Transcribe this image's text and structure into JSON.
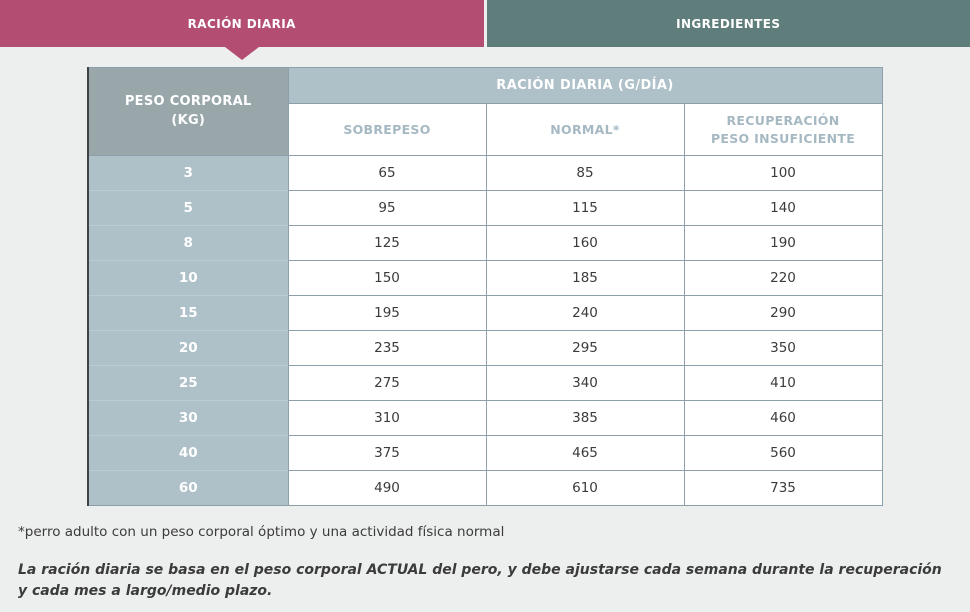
{
  "tabs": {
    "ration": {
      "label": "RACIÓN DIARIA",
      "active": true
    },
    "ingredients": {
      "label": "INGREDIENTES",
      "active": false
    }
  },
  "table": {
    "corner_header": "PESO CORPORAL\n(KG)",
    "group_header": "RACIÓN DIARIA (G/DÍA)",
    "columns": [
      "SOBREPESO",
      "NORMAL*",
      "RECUPERACIÓN\nPESO INSUFICIENTE"
    ],
    "rows": [
      {
        "weight": "3",
        "values": [
          "65",
          "85",
          "100"
        ]
      },
      {
        "weight": "5",
        "values": [
          "95",
          "115",
          "140"
        ]
      },
      {
        "weight": "8",
        "values": [
          "125",
          "160",
          "190"
        ]
      },
      {
        "weight": "10",
        "values": [
          "150",
          "185",
          "220"
        ]
      },
      {
        "weight": "15",
        "values": [
          "195",
          "240",
          "290"
        ]
      },
      {
        "weight": "20",
        "values": [
          "235",
          "295",
          "350"
        ]
      },
      {
        "weight": "25",
        "values": [
          "275",
          "340",
          "410"
        ]
      },
      {
        "weight": "30",
        "values": [
          "310",
          "385",
          "460"
        ]
      },
      {
        "weight": "40",
        "values": [
          "375",
          "465",
          "560"
        ]
      },
      {
        "weight": "60",
        "values": [
          "490",
          "610",
          "735"
        ]
      }
    ]
  },
  "footnotes": {
    "asterisk": "*perro adulto con un peso corporal óptimo y una actividad física normal",
    "bold_note": "La ración diaria se basa en el peso corporal ACTUAL del pero, y debe ajustarse cada semana durante la recuperación y cada mes a largo/medio plazo."
  },
  "colors": {
    "active_tab": "#b34d72",
    "inactive_tab": "#5f7e7b",
    "corner_header_bg": "#99a7ab",
    "blue_gray_bg": "#aec0c8",
    "subheader_text": "#a6b9c3",
    "table_border": "#8ba0ab",
    "page_background": "#edeeee"
  }
}
